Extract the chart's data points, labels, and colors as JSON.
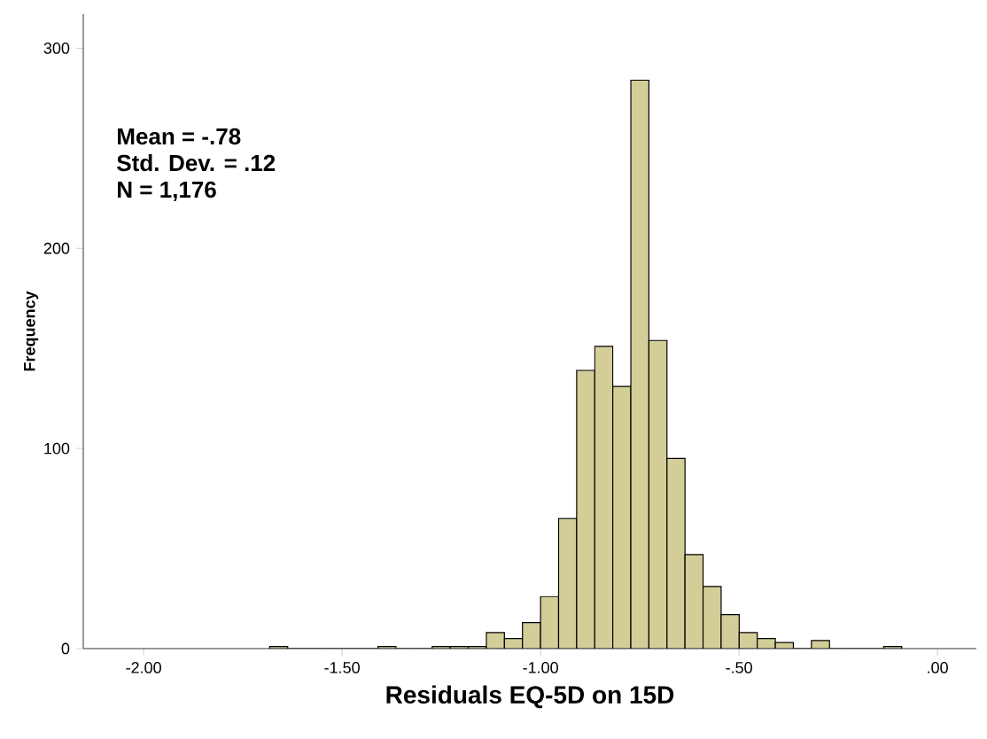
{
  "chart_data": {
    "type": "histogram",
    "xlabel": "Residuals EQ-5D on 15D",
    "ylabel": "Frequency",
    "annotations": [
      "Mean = -.78",
      "Std. Dev. = .12",
      "N = 1,176"
    ],
    "bins": [
      -1.6825,
      -1.637,
      -1.5915,
      -1.546,
      -1.5005,
      -1.455,
      -1.4095,
      -1.364,
      -1.3185,
      -1.273,
      -1.2275,
      -1.182,
      -1.1365,
      -1.091,
      -1.0455,
      -1.0,
      -0.9545,
      -0.909,
      -0.8635,
      -0.818,
      -0.7725,
      -0.727,
      -0.6815,
      -0.636,
      -0.5905,
      -0.545,
      -0.4995,
      -0.454,
      -0.4085,
      -0.363,
      -0.3175,
      -0.272,
      -0.2265,
      -0.181,
      -0.1355,
      -0.09
    ],
    "values": [
      1,
      0,
      0,
      0,
      0,
      0,
      1,
      0,
      0,
      1,
      1,
      1,
      8,
      5,
      13,
      26,
      65,
      139,
      151,
      131,
      284,
      154,
      95,
      47,
      31,
      17,
      8,
      5,
      3,
      0,
      4,
      0,
      0,
      0,
      1
    ],
    "color": "#d3ce98",
    "xlim": [
      -2.152,
      0.098
    ],
    "ylim": [
      0,
      317
    ],
    "xticks": [
      {
        "value": -2.0,
        "label": "-2.00"
      },
      {
        "value": -1.5,
        "label": "-1.50"
      },
      {
        "value": -1.0,
        "label": "-1.00"
      },
      {
        "value": -0.5,
        "label": "-.50"
      },
      {
        "value": 0.0,
        "label": ".00"
      }
    ],
    "yticks": [
      0,
      100,
      200,
      300
    ],
    "grid": false
  }
}
